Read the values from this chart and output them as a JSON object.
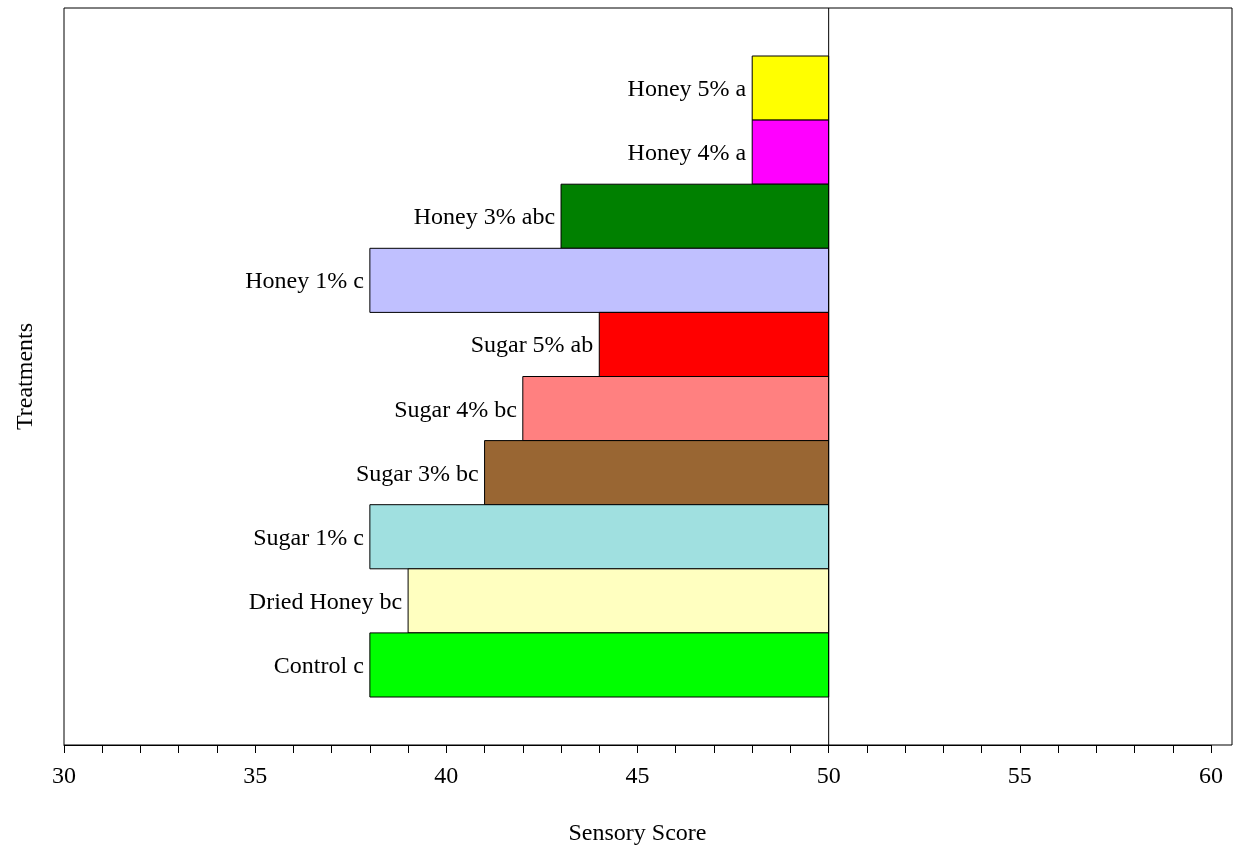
{
  "chart_data": {
    "type": "bar",
    "orientation": "horizontal",
    "xlabel": "Sensory Score",
    "ylabel": "Treatments",
    "categories": [
      "Honey 5% a",
      "Honey 4% a",
      "Honey 3% abc",
      "Honey 1% c",
      "Sugar 5% ab",
      "Sugar 4% bc",
      "Sugar 3% bc",
      "Sugar 1% c",
      "Dried Honey bc",
      "Control c"
    ],
    "base": [
      50,
      50,
      50,
      50,
      50,
      50,
      50,
      50,
      50,
      50
    ],
    "values": [
      -2,
      -2,
      -7,
      -12,
      -6,
      -8,
      -9,
      -12,
      -11,
      -12
    ],
    "colors": [
      "#ffff00",
      "#ff00ff",
      "#008000",
      "#c0c0ff",
      "#ff0000",
      "#ff8080",
      "#996633",
      "#a0e0e0",
      "#ffffc0",
      "#00ff00"
    ],
    "xlim": [
      30,
      60
    ],
    "xticks": [
      30,
      35,
      40,
      45,
      50,
      55,
      60
    ],
    "ref_lines": [
      {
        "axis": "x",
        "value": 50,
        "label": null,
        "color": "#000000"
      }
    ]
  }
}
